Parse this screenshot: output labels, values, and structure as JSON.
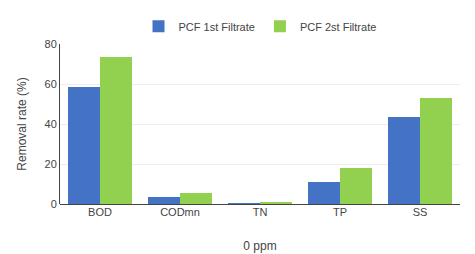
{
  "chart_data": {
    "type": "bar",
    "categories": [
      "BOD",
      "CODmn",
      "TN",
      "TP",
      "SS"
    ],
    "series": [
      {
        "name": "PCF 1st Filtrate",
        "color": "#4472C4",
        "values": [
          58.5,
          3.5,
          0.3,
          11.0,
          43.5
        ]
      },
      {
        "name": "PCF 2st Filtrate",
        "color": "#92D050",
        "values": [
          73.5,
          5.5,
          0.8,
          18.0,
          53.0
        ]
      }
    ],
    "xlabel": "0 ppm",
    "ylabel": "Removal rate (%)",
    "ylim": [
      0,
      80
    ],
    "yticks": [
      0,
      20,
      40,
      60,
      80
    ],
    "grid": true,
    "legend": "top"
  }
}
